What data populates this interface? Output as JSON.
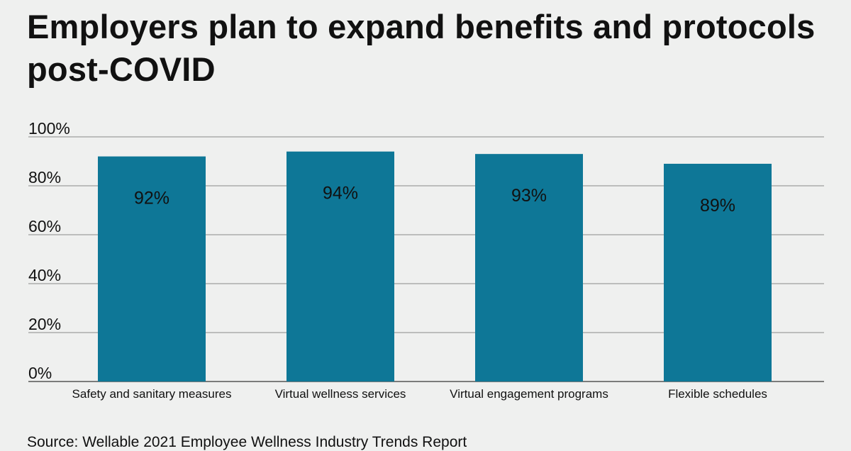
{
  "title": "Employers plan to expand benefits and protocols post-COVID",
  "source": "Source: Wellable 2021 Employee Wellness Industry Trends Report",
  "colors": {
    "bar": "#0e7797",
    "grid": "#8a8a8a",
    "background": "#eff0ef",
    "text": "#111111"
  },
  "chart_data": {
    "type": "bar",
    "title": "Employers plan to expand benefits and protocols post-COVID",
    "categories": [
      "Safety and sanitary measures",
      "Virtual wellness services",
      "Virtual engagement programs",
      "Flexible schedules"
    ],
    "values": [
      92,
      94,
      93,
      89
    ],
    "data_labels": [
      "92%",
      "94%",
      "93%",
      "89%"
    ],
    "yticks": [
      0,
      20,
      40,
      60,
      80,
      100
    ],
    "ytick_labels": [
      "0%",
      "20%",
      "40%",
      "60%",
      "80%",
      "100%"
    ],
    "ylim": [
      0,
      100
    ],
    "xlabel": "",
    "ylabel": "",
    "grid": true,
    "legend": "none"
  }
}
